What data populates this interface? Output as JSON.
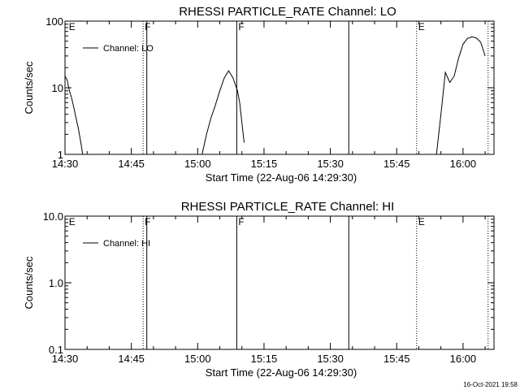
{
  "timestamp": "16-Oct-2021 19:58",
  "chart_data": [
    {
      "type": "line",
      "title": "RHESSI PARTICLE_RATE Channel: LO",
      "xlabel": "Start Time (22-Aug-06 14:29:30)",
      "ylabel": "Counts/sec",
      "yscale": "log",
      "xlim": [
        "14:30",
        "16:07"
      ],
      "ylim": [
        1,
        100
      ],
      "x_ticks": [
        "14:30",
        "14:45",
        "15:00",
        "15:15",
        "15:30",
        "15:45",
        "16:00"
      ],
      "y_ticks": [
        "1",
        "10",
        "100"
      ],
      "legend": {
        "position": "top-left",
        "entries": [
          "Channel: LO"
        ]
      },
      "series": [
        {
          "name": "Channel: LO",
          "segments": [
            [
              {
                "x": "14:30:00",
                "y": 15
              },
              {
                "x": "14:30:30",
                "y": 13
              },
              {
                "x": "14:31:00",
                "y": 9
              },
              {
                "x": "14:31:30",
                "y": 7
              },
              {
                "x": "14:32:00",
                "y": 5
              },
              {
                "x": "14:32:30",
                "y": 3.5
              },
              {
                "x": "14:33:00",
                "y": 2.5
              },
              {
                "x": "14:33:30",
                "y": 1.6
              },
              {
                "x": "14:34:00",
                "y": 1
              }
            ],
            [
              {
                "x": "15:01:00",
                "y": 1
              },
              {
                "x": "15:02:00",
                "y": 2
              },
              {
                "x": "15:03:00",
                "y": 3.5
              },
              {
                "x": "15:04:00",
                "y": 5.5
              },
              {
                "x": "15:05:00",
                "y": 9
              },
              {
                "x": "15:06:00",
                "y": 14
              },
              {
                "x": "15:07:00",
                "y": 18
              },
              {
                "x": "15:08:00",
                "y": 14
              },
              {
                "x": "15:09:00",
                "y": 9
              },
              {
                "x": "15:09:30",
                "y": 6
              },
              {
                "x": "15:10:00",
                "y": 3
              },
              {
                "x": "15:10:30",
                "y": 1.5
              }
            ],
            [
              {
                "x": "15:54:00",
                "y": 1
              },
              {
                "x": "15:55:00",
                "y": 4
              },
              {
                "x": "15:56:00",
                "y": 17
              },
              {
                "x": "15:57:00",
                "y": 12
              },
              {
                "x": "15:58:00",
                "y": 15
              },
              {
                "x": "15:59:00",
                "y": 28
              },
              {
                "x": "16:00:00",
                "y": 45
              },
              {
                "x": "16:01:00",
                "y": 55
              },
              {
                "x": "16:02:00",
                "y": 58
              },
              {
                "x": "16:03:00",
                "y": 56
              },
              {
                "x": "16:04:00",
                "y": 48
              },
              {
                "x": "16:05:00",
                "y": 30
              }
            ]
          ]
        }
      ],
      "markers": [
        {
          "time": "14:30:30",
          "label": "E",
          "style": "none"
        },
        {
          "time": "14:47:40",
          "label": "F",
          "style": "dotted"
        },
        {
          "time": "14:48:30",
          "label": "",
          "style": "solid"
        },
        {
          "time": "15:08:50",
          "label": "F",
          "style": "solid"
        },
        {
          "time": "15:34:10",
          "label": "",
          "style": "solid"
        },
        {
          "time": "15:49:30",
          "label": "E",
          "style": "dotted"
        },
        {
          "time": "16:05:40",
          "label": "",
          "style": "dotted"
        }
      ]
    },
    {
      "type": "line",
      "title": "RHESSI PARTICLE_RATE Channel: HI",
      "xlabel": "Start Time (22-Aug-06 14:29:30)",
      "ylabel": "Counts/sec",
      "yscale": "log",
      "xlim": [
        "14:30",
        "16:07"
      ],
      "ylim": [
        0.1,
        10
      ],
      "x_ticks": [
        "14:30",
        "14:45",
        "15:00",
        "15:15",
        "15:30",
        "15:45",
        "16:00"
      ],
      "y_ticks": [
        "0.1",
        "1.0",
        "10.0"
      ],
      "legend": {
        "position": "top-left",
        "entries": [
          "Channel: HI"
        ]
      },
      "series": [
        {
          "name": "Channel: HI",
          "segments": []
        }
      ],
      "markers": [
        {
          "time": "14:30:30",
          "label": "E",
          "style": "none"
        },
        {
          "time": "14:47:40",
          "label": "F",
          "style": "dotted"
        },
        {
          "time": "14:48:30",
          "label": "",
          "style": "solid"
        },
        {
          "time": "15:08:50",
          "label": "F",
          "style": "solid"
        },
        {
          "time": "15:34:10",
          "label": "",
          "style": "solid"
        },
        {
          "time": "15:49:30",
          "label": "E",
          "style": "dotted"
        },
        {
          "time": "16:05:40",
          "label": "",
          "style": "dotted"
        }
      ]
    }
  ]
}
